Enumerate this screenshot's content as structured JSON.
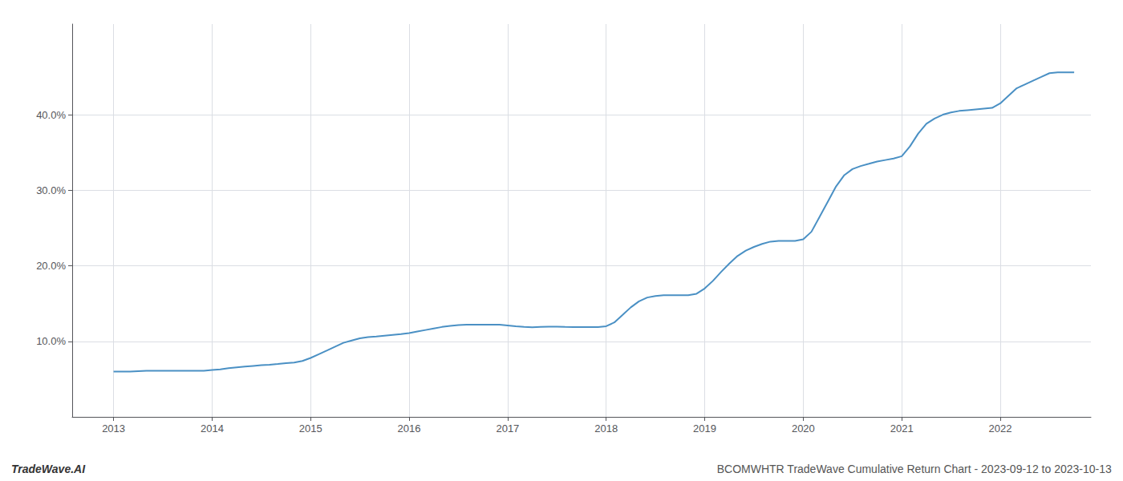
{
  "chart_data": {
    "type": "line",
    "annotations": [
      "TradeWave.AI",
      "BCOMWHTR TradeWave Cumulative Return Chart - 2023-09-12 to 2023-10-13"
    ],
    "color": "#4a90c4",
    "grid": true,
    "x": [
      2013.0,
      2013.083,
      2013.167,
      2013.25,
      2013.333,
      2013.417,
      2013.5,
      2013.583,
      2013.667,
      2013.75,
      2013.833,
      2013.917,
      2014.0,
      2014.083,
      2014.167,
      2014.25,
      2014.333,
      2014.417,
      2014.5,
      2014.583,
      2014.667,
      2014.75,
      2014.833,
      2014.917,
      2015.0,
      2015.083,
      2015.167,
      2015.25,
      2015.333,
      2015.417,
      2015.5,
      2015.583,
      2015.667,
      2015.75,
      2015.833,
      2015.917,
      2016.0,
      2016.083,
      2016.167,
      2016.25,
      2016.333,
      2016.417,
      2016.5,
      2016.583,
      2016.667,
      2016.75,
      2016.833,
      2016.917,
      2017.0,
      2017.083,
      2017.167,
      2017.25,
      2017.333,
      2017.417,
      2017.5,
      2017.583,
      2017.667,
      2017.75,
      2017.833,
      2017.917,
      2018.0,
      2018.083,
      2018.167,
      2018.25,
      2018.333,
      2018.417,
      2018.5,
      2018.583,
      2018.667,
      2018.75,
      2018.833,
      2018.917,
      2019.0,
      2019.083,
      2019.167,
      2019.25,
      2019.333,
      2019.417,
      2019.5,
      2019.583,
      2019.667,
      2019.75,
      2019.833,
      2019.917,
      2020.0,
      2020.083,
      2020.167,
      2020.25,
      2020.333,
      2020.417,
      2020.5,
      2020.583,
      2020.667,
      2020.75,
      2020.833,
      2020.917,
      2021.0,
      2021.083,
      2021.167,
      2021.25,
      2021.333,
      2021.417,
      2021.5,
      2021.583,
      2021.667,
      2021.75,
      2021.833,
      2021.917,
      2022.0,
      2022.083,
      2022.167,
      2022.25,
      2022.333,
      2022.417,
      2022.5,
      2022.583,
      2022.667,
      2022.75
    ],
    "values": [
      6.0,
      6.0,
      6.0,
      6.05,
      6.1,
      6.1,
      6.1,
      6.1,
      6.1,
      6.1,
      6.1,
      6.1,
      6.2,
      6.3,
      6.45,
      6.55,
      6.65,
      6.75,
      6.85,
      6.9,
      7.0,
      7.1,
      7.2,
      7.4,
      7.8,
      8.3,
      8.8,
      9.3,
      9.8,
      10.1,
      10.4,
      10.55,
      10.65,
      10.75,
      10.85,
      10.95,
      11.1,
      11.3,
      11.5,
      11.7,
      11.9,
      12.05,
      12.15,
      12.2,
      12.2,
      12.2,
      12.2,
      12.2,
      12.1,
      12.0,
      11.9,
      11.85,
      11.9,
      11.95,
      11.95,
      11.9,
      11.88,
      11.88,
      11.88,
      11.88,
      12.0,
      12.5,
      13.5,
      14.5,
      15.3,
      15.8,
      16.0,
      16.1,
      16.1,
      16.1,
      16.1,
      16.3,
      17.0,
      18.0,
      19.2,
      20.3,
      21.3,
      22.0,
      22.5,
      22.9,
      23.2,
      23.3,
      23.3,
      23.3,
      23.5,
      24.5,
      26.5,
      28.5,
      30.5,
      32.0,
      32.8,
      33.2,
      33.5,
      33.8,
      34.0,
      34.2,
      34.5,
      35.8,
      37.5,
      38.8,
      39.5,
      40.0,
      40.3,
      40.5,
      40.6,
      40.7,
      40.8,
      40.9,
      41.5,
      42.5,
      43.5,
      44.0,
      44.5,
      45.0,
      45.5,
      45.6,
      45.6,
      45.6
    ],
    "xlim": [
      2012.58,
      2022.92
    ],
    "xticks": [
      2013,
      2014,
      2015,
      2016,
      2017,
      2018,
      2019,
      2020,
      2021,
      2022
    ],
    "ylim": [
      0,
      52
    ],
    "yticks": [
      {
        "value": 10.0,
        "label": "10.0%"
      },
      {
        "value": 20.0,
        "label": "20.0%"
      },
      {
        "value": 30.0,
        "label": "30.0%"
      },
      {
        "value": 40.0,
        "label": "40.0%"
      }
    ]
  }
}
